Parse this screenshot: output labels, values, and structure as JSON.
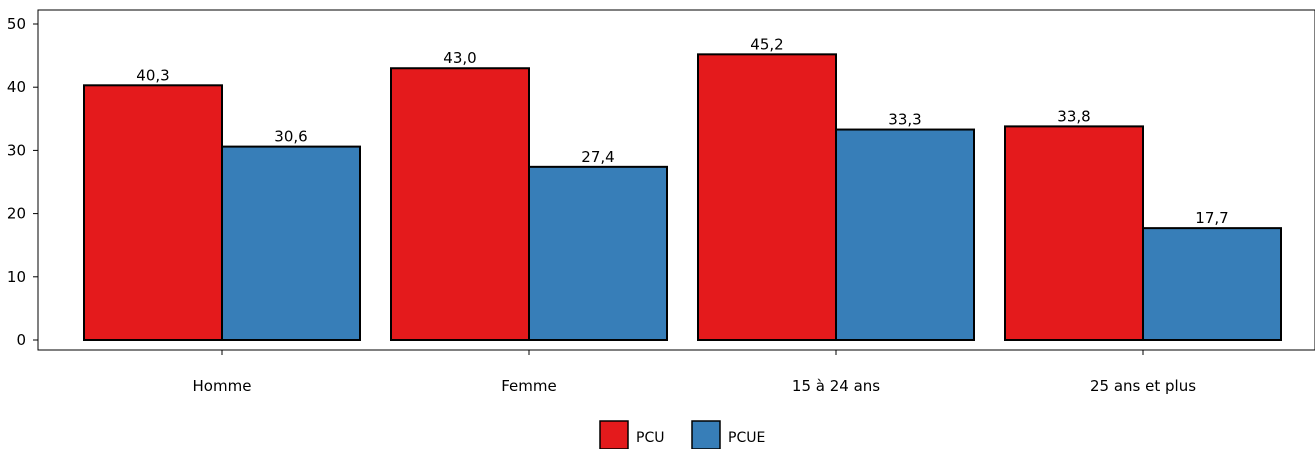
{
  "chart_data": {
    "type": "bar",
    "categories": [
      "Homme",
      "Femme",
      "15 à 24 ans",
      "25 ans et plus"
    ],
    "series": [
      {
        "name": "PCU",
        "values": [
          40.3,
          43.0,
          45.2,
          33.8
        ],
        "labels": [
          "40,3",
          "43,0",
          "45,2",
          "33,8"
        ],
        "color": "#e41a1c"
      },
      {
        "name": "PCUE",
        "values": [
          30.6,
          27.4,
          33.3,
          17.7
        ],
        "labels": [
          "30,6",
          "27,4",
          "33,3",
          "17,7"
        ],
        "color": "#377eb8"
      }
    ],
    "yticks": [
      0,
      10,
      20,
      30,
      40,
      50
    ],
    "ylim": [
      0,
      50
    ],
    "title": "",
    "xlabel": "",
    "ylabel": "",
    "grid": false,
    "legend": "bottom-center"
  }
}
